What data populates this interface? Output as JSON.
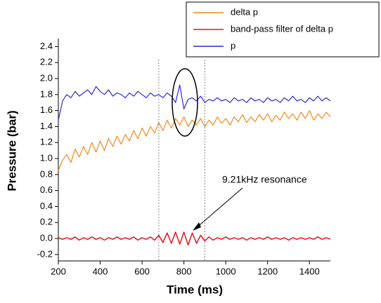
{
  "chart_data": {
    "type": "line",
    "xlabel": "Time (ms)",
    "ylabel": "Pressure (bar)",
    "xlim": [
      200,
      1500
    ],
    "ylim": [
      -0.28,
      2.5
    ],
    "xticks": [
      200,
      400,
      600,
      800,
      1000,
      1200,
      1400
    ],
    "yticks": [
      -0.2,
      {
        "value": 0,
        "label": "0.0"
      },
      0.2,
      0.4,
      0.6,
      0.8,
      {
        "value": 1,
        "label": "1.0"
      },
      1.2,
      1.4,
      1.6,
      1.8,
      {
        "value": 2,
        "label": "2.0"
      },
      2.2,
      2.4
    ],
    "vlines": [
      680,
      900
    ],
    "annotation": "9.21kHz resonance",
    "legend": "top-right",
    "x": [
      200,
      220,
      240,
      260,
      280,
      300,
      320,
      340,
      360,
      380,
      400,
      420,
      440,
      460,
      480,
      500,
      520,
      540,
      560,
      580,
      600,
      620,
      640,
      660,
      680,
      700,
      720,
      740,
      760,
      780,
      800,
      820,
      840,
      860,
      880,
      900,
      920,
      940,
      960,
      980,
      1000,
      1020,
      1040,
      1060,
      1080,
      1100,
      1120,
      1140,
      1160,
      1180,
      1200,
      1220,
      1240,
      1260,
      1280,
      1300,
      1320,
      1340,
      1360,
      1380,
      1400,
      1420,
      1440,
      1460,
      1480,
      1500
    ],
    "series": [
      {
        "name": "delta p",
        "color": "#f5891f",
        "values": [
          0.85,
          0.98,
          1.05,
          0.95,
          1.12,
          1.02,
          1.15,
          1.05,
          1.2,
          1.08,
          1.22,
          1.1,
          1.25,
          1.15,
          1.28,
          1.18,
          1.3,
          1.22,
          1.35,
          1.25,
          1.38,
          1.28,
          1.4,
          1.32,
          1.45,
          1.35,
          1.48,
          1.38,
          1.5,
          1.42,
          1.52,
          1.4,
          1.48,
          1.42,
          1.5,
          1.4,
          1.48,
          1.42,
          1.52,
          1.44,
          1.5,
          1.42,
          1.52,
          1.46,
          1.55,
          1.45,
          1.52,
          1.46,
          1.55,
          1.48,
          1.56,
          1.46,
          1.54,
          1.48,
          1.58,
          1.5,
          1.56,
          1.48,
          1.58,
          1.5,
          1.6,
          1.48,
          1.56,
          1.5,
          1.58,
          1.52
        ]
      },
      {
        "name": "band-pass filter of delta p",
        "color": "#e8141b",
        "values": [
          0.01,
          -0.01,
          0.01,
          -0.01,
          0.02,
          -0.02,
          0.01,
          -0.01,
          0.02,
          -0.01,
          0.01,
          -0.02,
          0.01,
          -0.01,
          0.02,
          -0.01,
          0.01,
          -0.01,
          0.02,
          -0.02,
          0.01,
          -0.01,
          0.02,
          -0.02,
          0.04,
          -0.05,
          0.07,
          -0.06,
          0.08,
          -0.07,
          0.08,
          -0.08,
          0.07,
          -0.06,
          0.04,
          -0.03,
          0.02,
          -0.02,
          0.01,
          -0.01,
          0.02,
          -0.01,
          0.01,
          -0.01,
          0.01,
          -0.02,
          0.01,
          -0.01,
          0.01,
          -0.01,
          0.02,
          -0.01,
          0.01,
          -0.01,
          0.01,
          -0.02,
          0.01,
          -0.01,
          0.01,
          -0.01,
          0.01,
          -0.01,
          0.02,
          -0.01,
          0.01,
          -0.01
        ]
      },
      {
        "name": "p",
        "color": "#2b2bd9",
        "values": [
          1.48,
          1.72,
          1.8,
          1.76,
          1.84,
          1.78,
          1.82,
          1.86,
          1.8,
          1.9,
          1.84,
          1.8,
          1.86,
          1.78,
          1.82,
          1.8,
          1.76,
          1.82,
          1.78,
          1.84,
          1.8,
          1.76,
          1.82,
          1.78,
          1.8,
          1.76,
          1.82,
          1.78,
          1.7,
          1.92,
          1.62,
          1.74,
          1.76,
          1.72,
          1.78,
          1.7,
          1.74,
          1.72,
          1.76,
          1.72,
          1.74,
          1.7,
          1.76,
          1.72,
          1.74,
          1.7,
          1.76,
          1.72,
          1.74,
          1.7,
          1.76,
          1.72,
          1.74,
          1.7,
          1.76,
          1.72,
          1.78,
          1.72,
          1.74,
          1.7,
          1.76,
          1.72,
          1.78,
          1.72,
          1.76,
          1.72
        ]
      }
    ]
  }
}
